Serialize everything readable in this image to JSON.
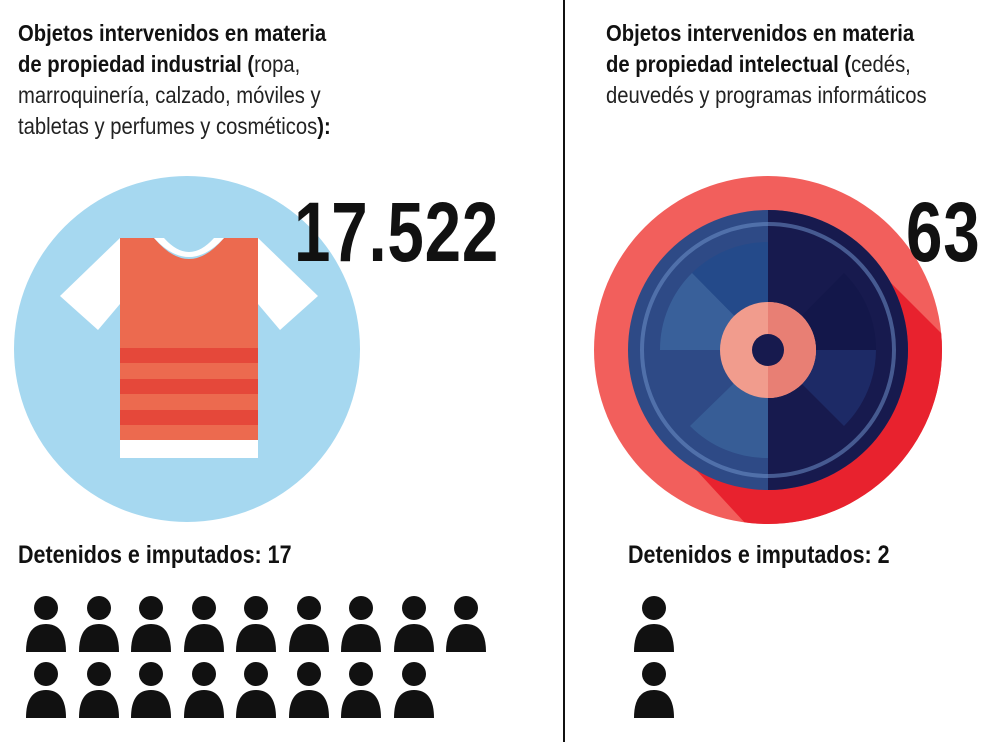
{
  "left": {
    "desc_bold": "Objetos intervenidos en materia de propiedad industrial (",
    "desc_light": "ropa, marroquinería, calzado, móviles y tabletas y perfumes y cosméticos",
    "desc_end": "):",
    "desc_lines": {
      "l1_bold": "Objetos intervenidos en materia",
      "l2_bold": "de propiedad industrial (",
      "l2_light": "ropa,",
      "l3_light": "marroquinería, calzado, móviles y",
      "l4_light": "tabletas y perfumes y cosméticos",
      "l4_bold": "):"
    },
    "count": "17.522",
    "icon": "tshirt-icon",
    "detained_label": "Detenidos e imputados: 17",
    "detained_count": 17,
    "colors": {
      "circle": "#a6d8f0",
      "shirt": "#ec6a4f",
      "stripe": "#e5483a",
      "sleeve": "#ffffff"
    }
  },
  "right": {
    "desc_lines": {
      "l1_bold": "Objetos intervenidos en materia",
      "l2_bold": "de propiedad intelectual (",
      "l2_light": "cedés,",
      "l3_light": "deuvedés y programas informáticos"
    },
    "count": "63",
    "icon": "disc-icon",
    "detained_label": "Detenidos e imputados: 2",
    "detained_count": 2,
    "colors": {
      "ring": "#f25f5c",
      "shadow": "#e8222e",
      "disc_light": "#2e4a86",
      "disc_dark": "#171a4e",
      "center": "#f19c8d"
    }
  },
  "person_icon": "person-icon"
}
